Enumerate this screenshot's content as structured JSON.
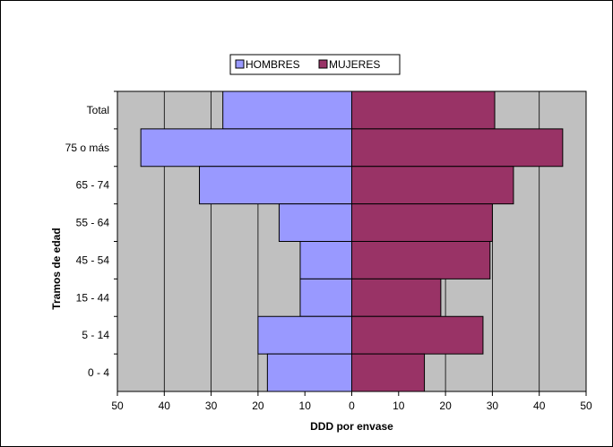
{
  "chart_data": {
    "type": "bar",
    "orientation": "horizontal",
    "layout": "population-pyramid",
    "categories": [
      "Total",
      "75 o más",
      "65 - 74",
      "55 - 64",
      "45 - 54",
      "15 - 44",
      "5 - 14",
      "0 - 4"
    ],
    "series": [
      {
        "name": "HOMBRES",
        "color": "#9999ff",
        "side": "left",
        "values": [
          27.5,
          45,
          32.5,
          15.5,
          11,
          11,
          20,
          18
        ]
      },
      {
        "name": "MUJERES",
        "color": "#993366",
        "side": "right",
        "values": [
          30.5,
          45,
          34.5,
          30,
          29.5,
          19,
          28,
          15.5
        ]
      }
    ],
    "xlabel": "DDD por envase",
    "ylabel": "Tramos de edad",
    "xlim": [
      -50,
      50
    ],
    "x_ticks": [
      -50,
      -40,
      -30,
      -20,
      -10,
      0,
      10,
      20,
      30,
      40,
      50
    ],
    "x_tick_labels": [
      "50",
      "40",
      "30",
      "20",
      "10",
      "0",
      "10",
      "20",
      "30",
      "40",
      "50"
    ],
    "plot_background": "#c0c0c0",
    "gridlines": "vertical",
    "legend": "top-center"
  }
}
